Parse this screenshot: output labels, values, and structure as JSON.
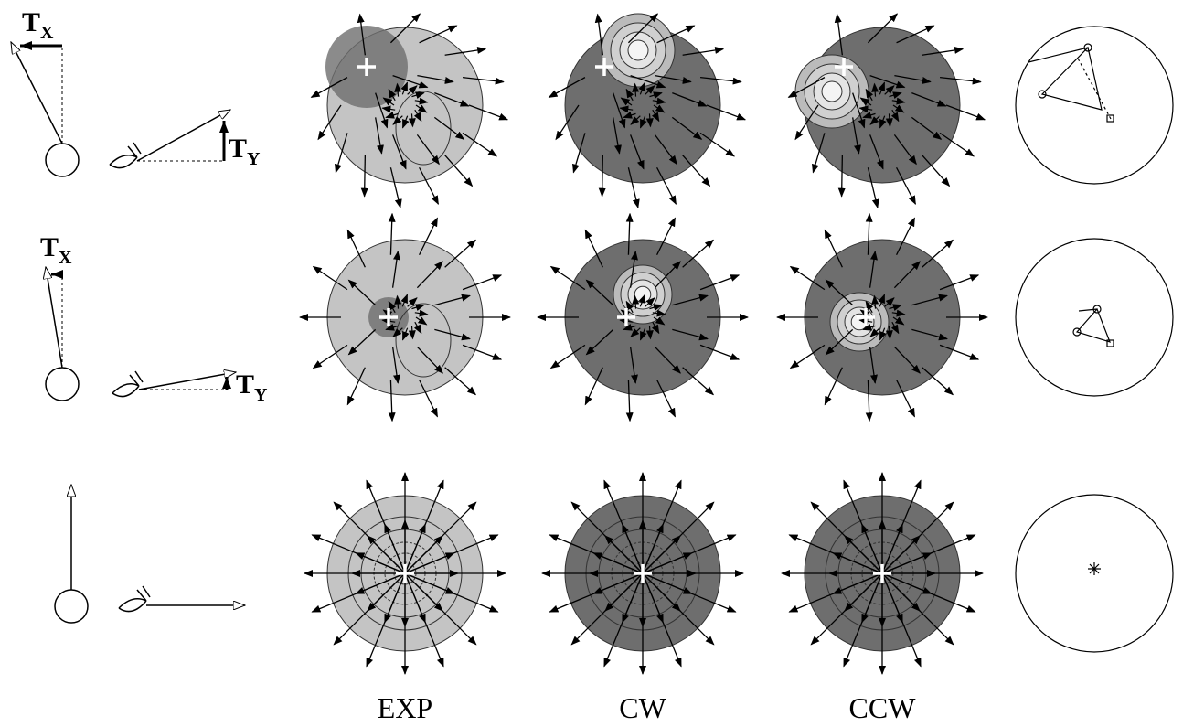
{
  "column_labels": [
    "EXP",
    "CW",
    "CCW"
  ],
  "rows": [
    {
      "tx": {
        "main": "T",
        "sub": "X"
      },
      "ty": {
        "main": "T",
        "sub": "Y"
      }
    },
    {
      "tx": {
        "main": "T",
        "sub": "X"
      },
      "ty": {
        "main": "T",
        "sub": "Y"
      }
    }
  ]
}
